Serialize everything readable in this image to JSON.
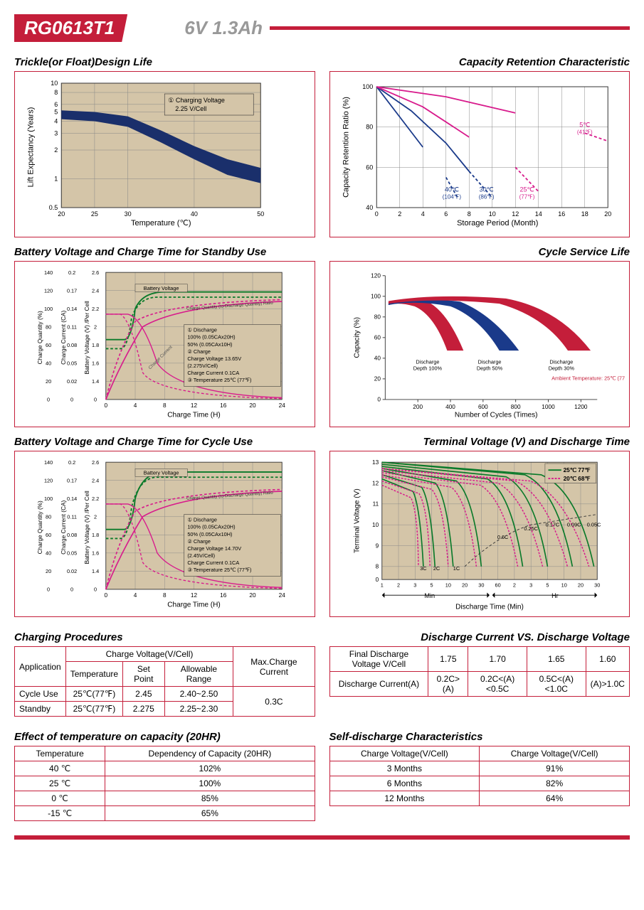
{
  "header": {
    "model": "RG0613T1",
    "spec": "6V  1.3Ah"
  },
  "chart1": {
    "title": "Trickle(or Float)Design Life",
    "xlabel": "Temperature (℃)",
    "ylabel": "Lift  Expectancy (Years)",
    "xticks": [
      20,
      25,
      30,
      40,
      50
    ],
    "yticks": [
      0.5,
      1,
      2,
      3,
      4,
      5,
      6,
      8,
      10
    ],
    "legend": "① Charging Voltage 2.25 V/Cell",
    "band_color": "#1a2f6b",
    "grid_bg": "#d4c5a8",
    "band_upper": [
      [
        20,
        5.2
      ],
      [
        25,
        5.0
      ],
      [
        30,
        4.5
      ],
      [
        35,
        3.2
      ],
      [
        40,
        2.2
      ],
      [
        45,
        1.6
      ],
      [
        50,
        1.3
      ]
    ],
    "band_lower": [
      [
        20,
        4.2
      ],
      [
        25,
        4.0
      ],
      [
        30,
        3.5
      ],
      [
        35,
        2.4
      ],
      [
        40,
        1.6
      ],
      [
        45,
        1.1
      ],
      [
        50,
        0.9
      ]
    ]
  },
  "chart2": {
    "title": "Capacity Retention Characteristic",
    "xlabel": "Storage Period (Month)",
    "ylabel": "Capacity Retention Ratio (%)",
    "xticks": [
      0,
      2,
      4,
      6,
      8,
      10,
      12,
      14,
      16,
      18,
      20
    ],
    "yticks": [
      40,
      60,
      80,
      100
    ],
    "curves": [
      {
        "label": "40℃ (104℉)",
        "color": "#1a3a8a",
        "points": [
          [
            0,
            100
          ],
          [
            2,
            85
          ],
          [
            4,
            70
          ],
          [
            6,
            55
          ],
          [
            7,
            45
          ]
        ],
        "dash_from": 5.5
      },
      {
        "label": "30℃ (86℉)",
        "color": "#1a3a8a",
        "points": [
          [
            0,
            100
          ],
          [
            3,
            88
          ],
          [
            6,
            72
          ],
          [
            8,
            58
          ],
          [
            10,
            45
          ]
        ],
        "dash_from": 8
      },
      {
        "label": "25℃ (77℉)",
        "color": "#d81b8c",
        "points": [
          [
            0,
            100
          ],
          [
            4,
            90
          ],
          [
            8,
            75
          ],
          [
            12,
            60
          ],
          [
            14,
            48
          ]
        ],
        "dash_from": 11
      },
      {
        "label": "5℃ (41℉)",
        "color": "#d81b8c",
        "points": [
          [
            0,
            100
          ],
          [
            6,
            95
          ],
          [
            12,
            87
          ],
          [
            18,
            77
          ],
          [
            20,
            73
          ]
        ],
        "dash_from": 16
      }
    ]
  },
  "chart3": {
    "title": "Battery Voltage and Charge Time for Standby Use",
    "xlabel": "Charge Time (H)",
    "y1label": "Charge Quantity (%)",
    "y2label": "Charge Current (CA)",
    "y3label": "Battery Voltage (V) /Per Cell",
    "xticks": [
      0,
      4,
      8,
      12,
      16,
      20,
      24
    ],
    "y1ticks": [
      0,
      20,
      40,
      60,
      80,
      100,
      120,
      140
    ],
    "y2ticks": [
      0,
      0.02,
      0.05,
      0.08,
      0.11,
      0.14,
      0.17,
      0.2
    ],
    "y3ticks": [
      0,
      1.4,
      1.6,
      1.8,
      2.0,
      2.2,
      2.4,
      2.6
    ],
    "grid_bg": "#d4c5a8",
    "legend_lines": [
      "① Discharge",
      "100% (0.05CAx20H)",
      "50% (0.05CAx10H)",
      "② Charge",
      "Charge Voltage 13.65V",
      "(2.275V/Cell)",
      "Charge Current 0.1CA",
      "③ Temperature 25℃ (77℉)"
    ],
    "label_bv": "Battery Voltage",
    "label_cq": "Charge Quantity (to-Discharge Quantity) Ratio",
    "label_cc": "Charge Current"
  },
  "chart4": {
    "title": "Cycle Service Life",
    "xlabel": "Number of Cycles (Times)",
    "ylabel": "Capacity (%)",
    "xticks": [
      200,
      400,
      600,
      800,
      1000,
      1200
    ],
    "yticks": [
      0,
      20,
      40,
      60,
      80,
      100,
      120
    ],
    "labels": [
      "Discharge Depth 100%",
      "Discharge Depth 50%",
      "Discharge Depth 30%"
    ],
    "ambient": "Ambient Temperature: 25℃ (77℉)",
    "colors": [
      "#c41e3a",
      "#1a3a8a",
      "#c41e3a"
    ]
  },
  "chart5": {
    "title": "Battery Voltage and Charge Time for Cycle Use",
    "xlabel": "Charge Time (H)",
    "legend_lines": [
      "① Discharge",
      "100% (0.05CAx20H)",
      "50% (0.05CAx10H)",
      "② Charge",
      "Charge Voltage 14.70V",
      "(2.45V/Cell)",
      "Charge Current 0.1CA",
      "③ Temperature 25℃ (77℉)"
    ]
  },
  "chart6": {
    "title": "Terminal Voltage (V) and Discharge Time",
    "xlabel": "Discharge Time (Min)",
    "ylabel": "Terminal Voltage (V)",
    "yticks": [
      0,
      8,
      9,
      10,
      11,
      12,
      13
    ],
    "xticks_labels": [
      "1",
      "2",
      "3",
      "5",
      "10",
      "20",
      "30",
      "60",
      "2",
      "3",
      "5",
      "10",
      "20",
      "30"
    ],
    "min_label": "Min",
    "hr_label": "Hr",
    "grid_bg": "#d4c5a8",
    "legend": [
      {
        "label": "25℃ 77℉",
        "color": "#0a7a2a"
      },
      {
        "label": "20℃ 68℉",
        "color": "#d81b8c"
      }
    ],
    "rate_labels": [
      "3C",
      "2C",
      "1C",
      "0.6C",
      "0.25C",
      "0.17C",
      "0.09C",
      "0.05C"
    ]
  },
  "table1": {
    "title": "Charging Procedures",
    "headers": [
      "Application",
      "Charge Voltage(V/Cell)",
      "Max.Charge Current"
    ],
    "sub_headers": [
      "Temperature",
      "Set Point",
      "Allowable Range"
    ],
    "rows": [
      [
        "Cycle Use",
        "25℃(77℉)",
        "2.45",
        "2.40~2.50"
      ],
      [
        "Standby",
        "25℃(77℉)",
        "2.275",
        "2.25~2.30"
      ]
    ],
    "max_current": "0.3C"
  },
  "table2": {
    "title": "Discharge Current VS. Discharge Voltage",
    "r1": [
      "Final Discharge Voltage V/Cell",
      "1.75",
      "1.70",
      "1.65",
      "1.60"
    ],
    "r2": [
      "Discharge Current(A)",
      "0.2C>(A)",
      "0.2C<(A)<0.5C",
      "0.5C<(A)<1.0C",
      "(A)>1.0C"
    ]
  },
  "table3": {
    "title": "Effect of temperature on capacity (20HR)",
    "headers": [
      "Temperature",
      "Dependency of Capacity (20HR)"
    ],
    "rows": [
      [
        "40 ℃",
        "102%"
      ],
      [
        "25 ℃",
        "100%"
      ],
      [
        "0 ℃",
        "85%"
      ],
      [
        "-15 ℃",
        "65%"
      ]
    ]
  },
  "table4": {
    "title": "Self-discharge Characteristics",
    "headers": [
      "Charge Voltage(V/Cell)",
      "Charge Voltage(V/Cell)"
    ],
    "rows": [
      [
        "3 Months",
        "91%"
      ],
      [
        "6 Months",
        "82%"
      ],
      [
        "12 Months",
        "64%"
      ]
    ]
  }
}
